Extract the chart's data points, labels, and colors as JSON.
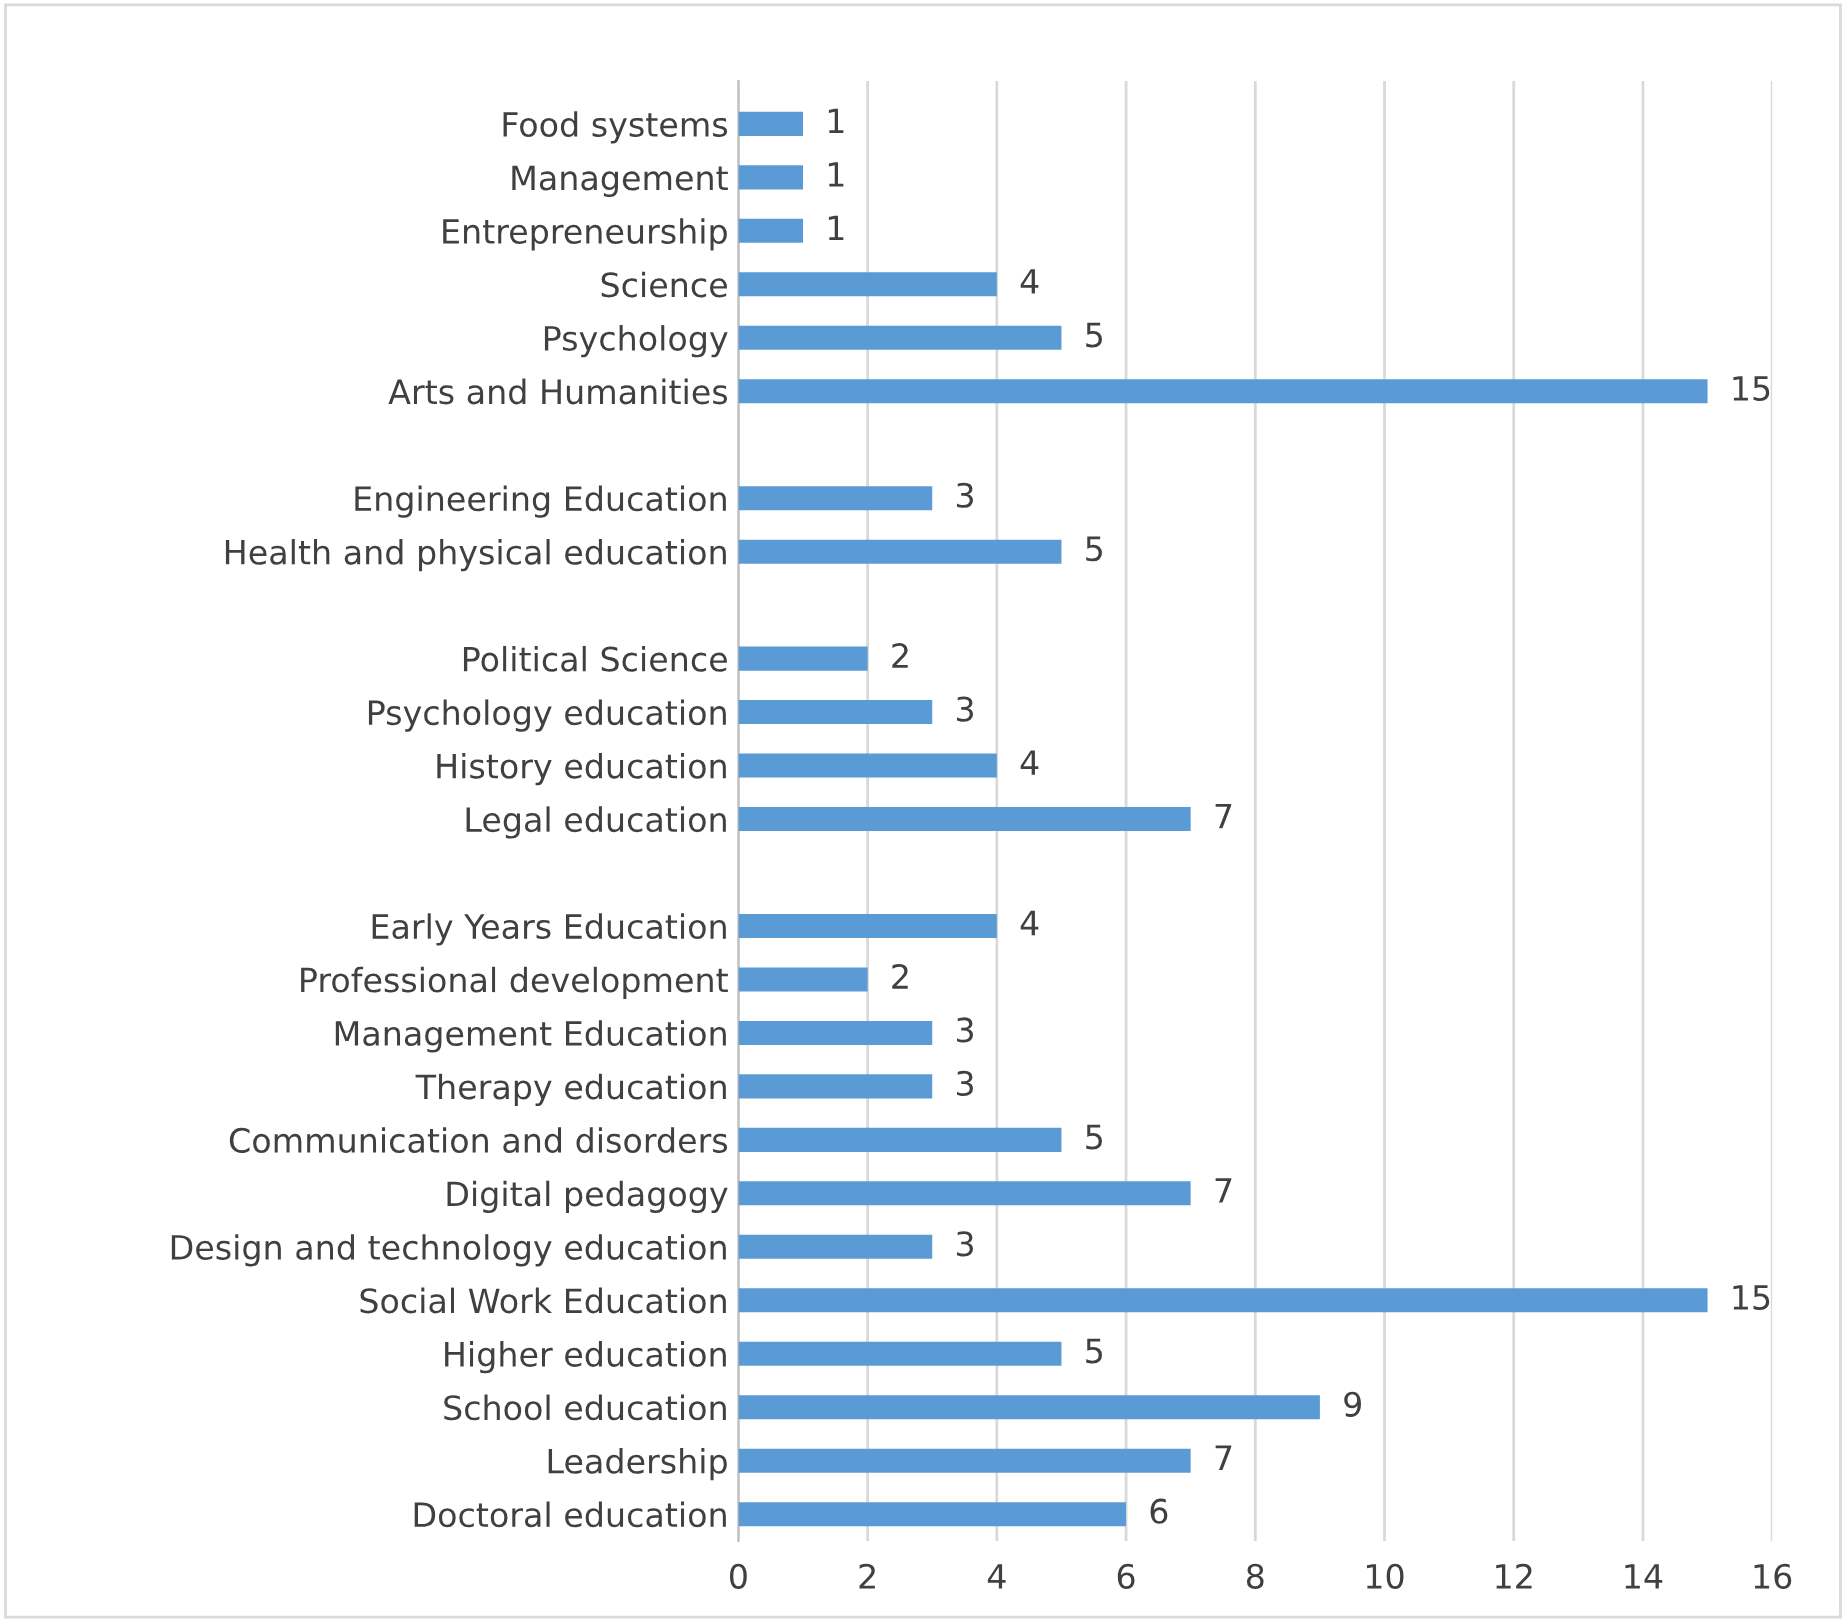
{
  "chart_data": {
    "type": "bar",
    "orientation": "horizontal",
    "categories": [
      "Food systems",
      "Management",
      "Entrepreneurship",
      "Science",
      "Psychology",
      "Arts and Humanities",
      null,
      "Engineering Education",
      "Health and physical education",
      null,
      "Political Science",
      "Psychology education",
      "History education",
      "Legal education",
      null,
      "Early Years Education",
      "Professional development",
      "Management Education",
      "Therapy education",
      "Communication and disorders",
      "Digital pedagogy",
      "Design and technology education",
      "Social Work Education",
      "Higher education",
      "School education",
      "Leadership",
      "Doctoral education"
    ],
    "values": [
      1,
      1,
      1,
      4,
      5,
      15,
      null,
      3,
      5,
      null,
      2,
      3,
      4,
      7,
      null,
      4,
      2,
      3,
      3,
      5,
      7,
      3,
      15,
      5,
      9,
      7,
      6
    ],
    "color": "#5b9bd5",
    "xlim": [
      0,
      16
    ],
    "xticks": [
      0,
      2,
      4,
      6,
      8,
      10,
      12,
      14,
      16
    ],
    "grid": "x",
    "data_labels": true
  }
}
